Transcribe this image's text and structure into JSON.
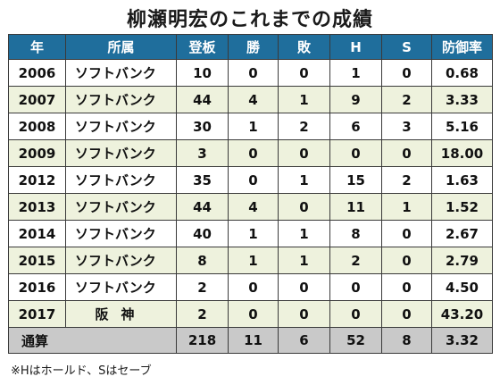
{
  "title": "柳瀬明宏のこれまでの成績",
  "headers": [
    "年",
    "所属",
    "登板",
    "勝",
    "敗",
    "H",
    "S",
    "防御率"
  ],
  "rows": [
    {
      "year": "2006",
      "team": "ソフトバンク",
      "games": "10",
      "wins": "0",
      "losses": "0",
      "holds": "1",
      "saves": "0",
      "era": "0.68"
    },
    {
      "year": "2007",
      "team": "ソフトバンク",
      "games": "44",
      "wins": "4",
      "losses": "1",
      "holds": "9",
      "saves": "2",
      "era": "3.33"
    },
    {
      "year": "2008",
      "team": "ソフトバンク",
      "games": "30",
      "wins": "1",
      "losses": "2",
      "holds": "6",
      "saves": "3",
      "era": "5.16"
    },
    {
      "year": "2009",
      "team": "ソフトバンク",
      "games": "3",
      "wins": "0",
      "losses": "0",
      "holds": "0",
      "saves": "0",
      "era": "18.00"
    },
    {
      "year": "2012",
      "team": "ソフトバンク",
      "games": "35",
      "wins": "0",
      "losses": "1",
      "holds": "15",
      "saves": "2",
      "era": "1.63"
    },
    {
      "year": "2013",
      "team": "ソフトバンク",
      "games": "44",
      "wins": "4",
      "losses": "0",
      "holds": "11",
      "saves": "1",
      "era": "1.52"
    },
    {
      "year": "2014",
      "team": "ソフトバンク",
      "games": "40",
      "wins": "1",
      "losses": "1",
      "holds": "8",
      "saves": "0",
      "era": "2.67"
    },
    {
      "year": "2015",
      "team": "ソフトバンク",
      "games": "8",
      "wins": "1",
      "losses": "1",
      "holds": "2",
      "saves": "0",
      "era": "2.79"
    },
    {
      "year": "2016",
      "team": "ソフトバンク",
      "games": "2",
      "wins": "0",
      "losses": "0",
      "holds": "0",
      "saves": "0",
      "era": "4.50"
    },
    {
      "year": "2017",
      "team": "阪神",
      "games": "2",
      "wins": "0",
      "losses": "0",
      "holds": "0",
      "saves": "0",
      "era": "43.20"
    }
  ],
  "total": {
    "label": "通算",
    "games": "218",
    "wins": "11",
    "losses": "6",
    "holds": "52",
    "saves": "8",
    "era": "3.32"
  },
  "note": "※Hはホールド、Sはセーブ",
  "colors": {
    "header_bg": "#1f6e9c",
    "row_alt_bg": "#eef2dd",
    "total_bg": "#c9c9c9"
  }
}
